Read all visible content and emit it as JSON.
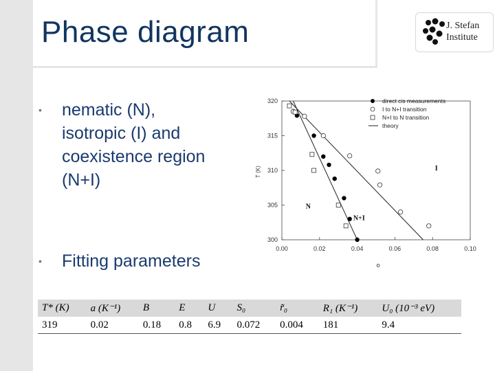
{
  "slide": {
    "title": "Phase diagram",
    "logo": {
      "line1": "J. Stefan",
      "line2": "Institute"
    },
    "bullets": [
      {
        "lines": [
          "nematic (N),",
          "isotropic (I) and",
          "coexistence region",
          "(N+I)"
        ]
      },
      {
        "lines": [
          "Fitting parameters"
        ]
      }
    ]
  },
  "chart_data": {
    "type": "scatter",
    "xlabel": "",
    "ylabel": "T (K)",
    "xlim": [
      0.0,
      0.1
    ],
    "ylim": [
      300,
      320
    ],
    "x_ticks": [
      "0.00",
      "0.02",
      "0.04",
      "0.06",
      "0.08",
      "0.10"
    ],
    "y_ticks": [
      "300",
      "305",
      "310",
      "315",
      "320"
    ],
    "stray_label": "o",
    "legend": [
      "direct cis measurements",
      "I to N+I transition",
      "N+I to N transition",
      "theory"
    ],
    "legend_position": "top-right",
    "series": [
      {
        "name": "direct cis measurements",
        "marker": "filled-circle",
        "points": [
          [
            0.008,
            317.9
          ],
          [
            0.017,
            315.0
          ],
          [
            0.022,
            312.0
          ],
          [
            0.025,
            310.8
          ],
          [
            0.028,
            308.8
          ],
          [
            0.033,
            306.0
          ],
          [
            0.036,
            303.0
          ],
          [
            0.04,
            300.0
          ]
        ]
      },
      {
        "name": "I to N+I transition",
        "marker": "open-circle",
        "points": [
          [
            0.006,
            318.5
          ],
          [
            0.012,
            317.8
          ],
          [
            0.022,
            315.0
          ],
          [
            0.036,
            312.1
          ],
          [
            0.051,
            309.9
          ],
          [
            0.052,
            307.9
          ],
          [
            0.063,
            304.0
          ],
          [
            0.078,
            302.0
          ]
        ]
      },
      {
        "name": "N+I to N transition",
        "marker": "open-square",
        "points": [
          [
            0.004,
            319.3
          ],
          [
            0.007,
            318.4
          ],
          [
            0.016,
            312.3
          ],
          [
            0.017,
            310.0
          ],
          [
            0.03,
            305.0
          ],
          [
            0.034,
            302.0
          ]
        ]
      },
      {
        "name": "theory",
        "marker": "line",
        "segments": [
          [
            [
              0.006,
              320.0
            ],
            [
              0.04,
              300.0
            ]
          ],
          [
            [
              0.004,
              320.0
            ],
            [
              0.075,
              300.0
            ]
          ]
        ]
      }
    ],
    "annotations": [
      "N",
      "N+I",
      "I"
    ]
  },
  "params_table": {
    "headers": [
      "T* (K)",
      "a (K⁻¹)",
      "B",
      "E",
      "U",
      "S₀",
      "r̃₀",
      "R₁ (K⁻¹)",
      "U₀ (10⁻³ eV)"
    ],
    "values": [
      "319",
      "0.02",
      "0.18",
      "0.8",
      "6.9",
      "0.072",
      "0.004",
      "181",
      "9.4"
    ]
  }
}
